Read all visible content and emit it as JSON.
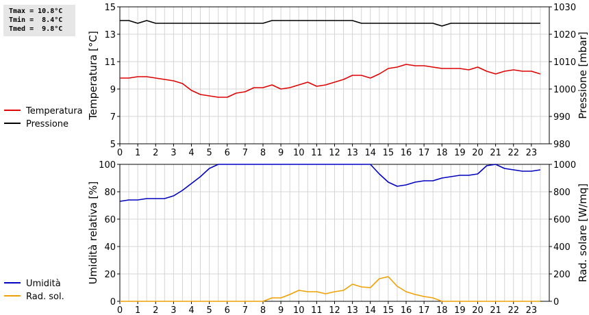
{
  "stats": {
    "tmax": "Tmax = 10.8°C",
    "tmin": "Tmin =  8.4°C",
    "tmed": "Tmed =  9.8°C"
  },
  "chart_data": [
    {
      "type": "line",
      "x_ticks": [
        "0",
        "1",
        "2",
        "3",
        "4",
        "5",
        "6",
        "7",
        "8",
        "9",
        "10",
        "11",
        "12",
        "13",
        "14",
        "15",
        "16",
        "17",
        "18",
        "19",
        "20",
        "21",
        "22",
        "23"
      ],
      "ylabel": "Temperatura [°C]",
      "ylim": [
        5,
        15
      ],
      "y_ticks": [
        5,
        7,
        9,
        11,
        13,
        15
      ],
      "y2label": "Pressione [mbar]",
      "y2lim": [
        980,
        1030
      ],
      "y2_ticks": [
        980,
        990,
        1000,
        1010,
        1020,
        1030
      ],
      "grid": true,
      "legend_position": "left",
      "series": [
        {
          "name": "Temperatura",
          "color": "#e00000",
          "axis": "left",
          "x": [
            0,
            0.5,
            1,
            1.5,
            2,
            2.5,
            3,
            3.5,
            4,
            4.5,
            5,
            5.5,
            6,
            6.5,
            7,
            7.5,
            8,
            8.5,
            9,
            9.5,
            10,
            10.5,
            11,
            11.5,
            12,
            12.5,
            13,
            13.5,
            14,
            14.5,
            15,
            15.5,
            16,
            16.5,
            17,
            17.5,
            18,
            18.5,
            19,
            19.5,
            20,
            20.5,
            21,
            21.5,
            22,
            22.5,
            23,
            23.5
          ],
          "y": [
            9.8,
            9.8,
            9.9,
            9.9,
            9.8,
            9.7,
            9.6,
            9.4,
            8.9,
            8.6,
            8.5,
            8.4,
            8.4,
            8.7,
            8.8,
            9.1,
            9.1,
            9.3,
            9.0,
            9.1,
            9.3,
            9.5,
            9.2,
            9.3,
            9.5,
            9.7,
            10.0,
            10.0,
            9.8,
            10.1,
            10.5,
            10.6,
            10.8,
            10.7,
            10.7,
            10.6,
            10.5,
            10.5,
            10.5,
            10.4,
            10.6,
            10.3,
            10.1,
            10.3,
            10.4,
            10.3,
            10.3,
            10.1
          ]
        },
        {
          "name": "Pressione",
          "color": "#000000",
          "axis": "right",
          "x": [
            0,
            0.5,
            1,
            1.5,
            2,
            8,
            8.5,
            13,
            13.5,
            17.5,
            18,
            18.5,
            23.5
          ],
          "y": [
            1025,
            1025,
            1024,
            1025,
            1024,
            1024,
            1025,
            1025,
            1024,
            1024,
            1023,
            1024,
            1024
          ]
        }
      ]
    },
    {
      "type": "line",
      "x_ticks": [
        "0",
        "1",
        "2",
        "3",
        "4",
        "5",
        "6",
        "7",
        "8",
        "9",
        "10",
        "11",
        "12",
        "13",
        "14",
        "15",
        "16",
        "17",
        "18",
        "19",
        "20",
        "21",
        "22",
        "23"
      ],
      "ylabel": "Umidità relativa [%]",
      "ylim": [
        0,
        100
      ],
      "y_ticks": [
        0,
        20,
        40,
        60,
        80,
        100
      ],
      "y2label": "Rad. solare [W/mq]",
      "y2lim": [
        0,
        1000
      ],
      "y2_ticks": [
        0,
        200,
        400,
        600,
        800,
        1000
      ],
      "grid": true,
      "legend_position": "left",
      "series": [
        {
          "name": "Umidità",
          "color": "#0000c0",
          "axis": "left",
          "x": [
            0,
            0.5,
            1,
            1.5,
            2,
            2.5,
            3,
            3.5,
            4,
            4.5,
            5,
            5.5,
            6,
            14,
            14.5,
            15,
            15.5,
            16,
            16.5,
            17,
            17.5,
            18,
            18.5,
            19,
            19.5,
            20,
            20.5,
            21,
            21.5,
            22,
            22.5,
            23,
            23.5
          ],
          "y": [
            73,
            74,
            74,
            75,
            75,
            75,
            77,
            81,
            86,
            91,
            97,
            100,
            100,
            100,
            93,
            87,
            84,
            85,
            87,
            88,
            88,
            90,
            91,
            92,
            92,
            93,
            99,
            100,
            97,
            96,
            95,
            95,
            96
          ]
        },
        {
          "name": "Rad. sol.",
          "color": "#f0a000",
          "axis": "right",
          "x": [
            0,
            8,
            8.5,
            9,
            9.5,
            10,
            10.5,
            11,
            11.5,
            12,
            12.5,
            13,
            13.5,
            14,
            14.5,
            15,
            15.5,
            16,
            16.5,
            17,
            17.5,
            18,
            23.5
          ],
          "y": [
            0,
            0,
            25,
            25,
            50,
            80,
            70,
            70,
            55,
            70,
            80,
            125,
            105,
            100,
            165,
            180,
            110,
            70,
            50,
            35,
            25,
            0,
            0
          ]
        }
      ]
    }
  ]
}
